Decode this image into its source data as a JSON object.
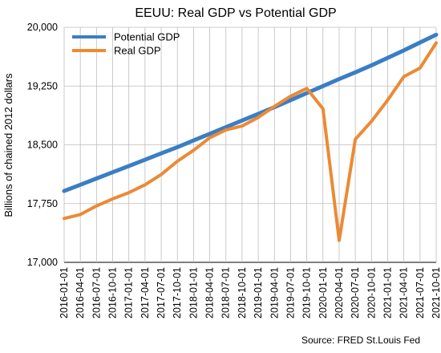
{
  "chart_data": {
    "type": "line",
    "title": "EEUU: Real GDP vs Potential GDP",
    "xlabel": "",
    "ylabel": "Billions of chained 2012 dollars",
    "ylim": [
      17000,
      20000
    ],
    "yticks": [
      "17,000",
      "17,750",
      "18,500",
      "19,250",
      "20,000"
    ],
    "ytick_values": [
      17000,
      17750,
      18500,
      19250,
      20000
    ],
    "grid": true,
    "legend_position": "top-left",
    "source": "Source: FRED St.Louis Fed",
    "categories": [
      "2016-01-01",
      "2016-04-01",
      "2016-07-01",
      "2016-10-01",
      "2017-01-01",
      "2017-04-01",
      "2017-07-01",
      "2017-10-01",
      "2018-01-01",
      "2018-04-01",
      "2018-07-01",
      "2018-10-01",
      "2019-01-01",
      "2019-04-01",
      "2019-07-01",
      "2019-10-01",
      "2020-01-01",
      "2020-04-01",
      "2020-07-01",
      "2020-10-01",
      "2021-01-01",
      "2021-04-01",
      "2021-07-01",
      "2021-10-01"
    ],
    "series": [
      {
        "name": "Potential GDP",
        "color": "#3a7ec4",
        "values": [
          17910,
          17990,
          18070,
          18150,
          18230,
          18310,
          18390,
          18470,
          18555,
          18640,
          18725,
          18810,
          18895,
          18980,
          19070,
          19160,
          19250,
          19340,
          19425,
          19515,
          19610,
          19705,
          19805,
          19905
        ]
      },
      {
        "name": "Real GDP",
        "color": "#ec8a35",
        "values": [
          17560,
          17610,
          17720,
          17810,
          17890,
          17990,
          18120,
          18290,
          18430,
          18590,
          18690,
          18740,
          18850,
          18990,
          19120,
          19220,
          18960,
          17280,
          18570,
          18800,
          19070,
          19370,
          19480,
          19800
        ]
      }
    ]
  }
}
